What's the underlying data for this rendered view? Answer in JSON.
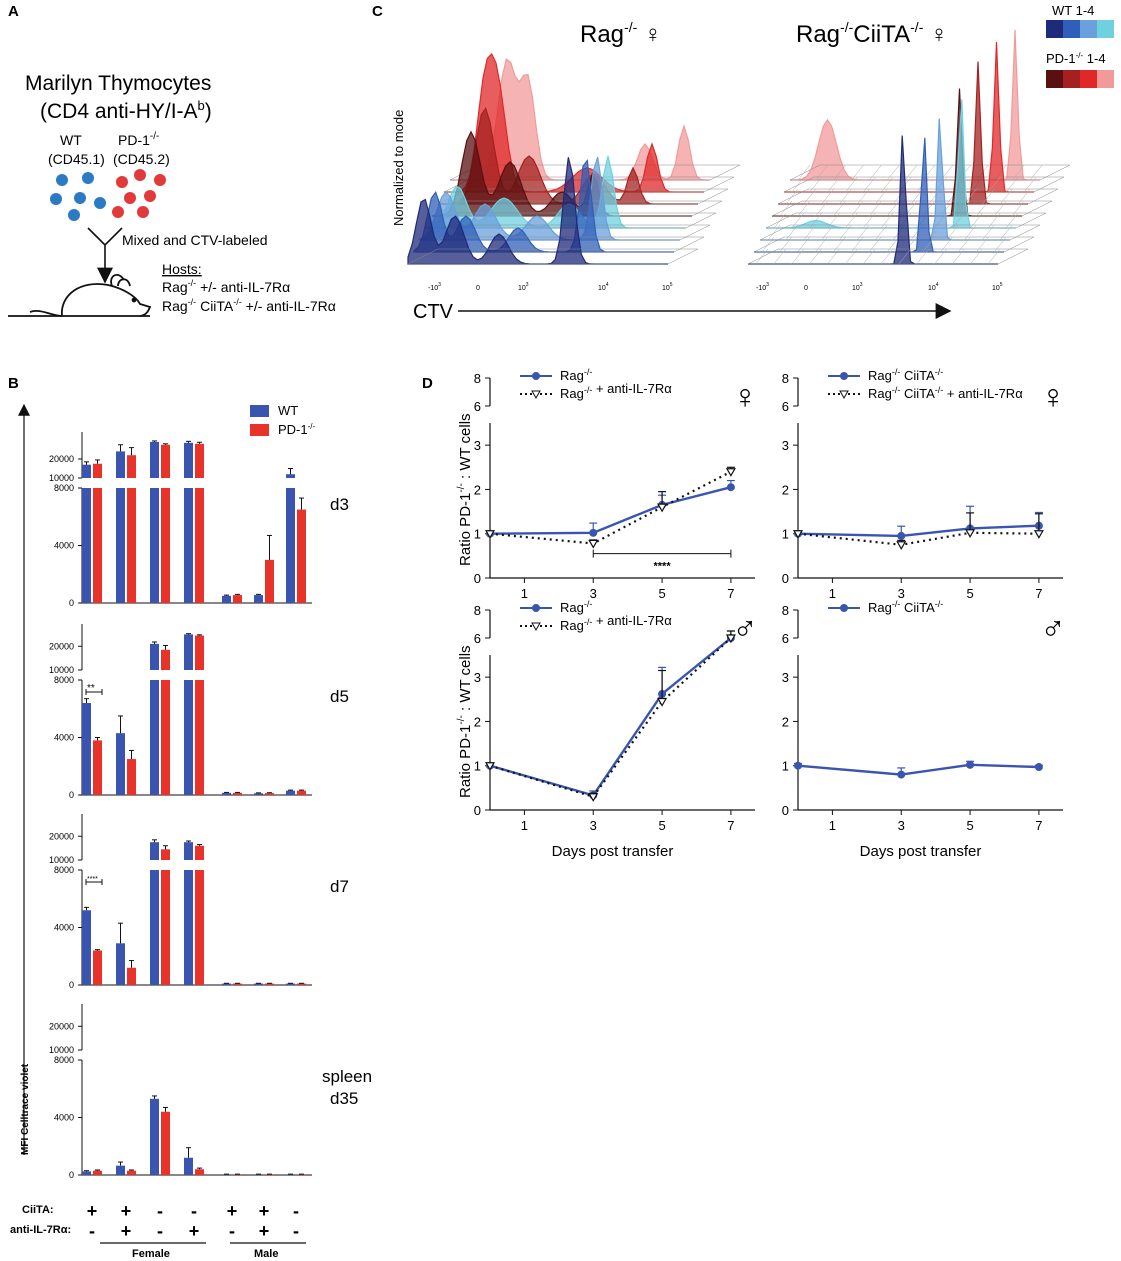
{
  "panelA": {
    "letter": "A",
    "title_line1": "Marilyn Thymocytes",
    "title_line2_pre": "(CD4 anti-HY/I-A",
    "title_line2_sup": "b",
    "title_line2_post": ")",
    "wt_label": "WT",
    "wt_marker": "(CD45.1)",
    "pd1_label": "PD-1",
    "pd1_sup": "-/-",
    "pd1_marker": "(CD45.2)",
    "mixed_label": "Mixed and CTV-labeled",
    "hosts_title": "Hosts:",
    "host1_pre": "Rag",
    "host1_sup": "-/-",
    "host1_post": " +/- anti-IL-7Rα",
    "host2_pre": "Rag",
    "host2_sup1": "-/-",
    "host2_mid": " CiiTA",
    "host2_sup2": "-/-",
    "host2_post": " +/- anti-IL-7Rα",
    "colors": {
      "wt": "#2a7bc4",
      "pd1": "#e23a3a"
    }
  },
  "panelC": {
    "letter": "C",
    "title_left_pre": "Rag",
    "title_left_sup": "-/-",
    "title_left_sym": " ♀",
    "title_right_pre": "Rag",
    "title_right_sup1": "-/-",
    "title_right_mid": "CiiTA",
    "title_right_sup2": "-/-",
    "title_right_sym": " ♀",
    "ylabel": "Normalized to mode",
    "xlabel": "CTV",
    "legend_wt": "WT 1-4",
    "legend_pd1_pre": "PD-1",
    "legend_pd1_sup": "-/-",
    "legend_pd1_post": " 1-4",
    "wt_colors": [
      "#1f2a7a",
      "#2f5fb8",
      "#6aa0dc",
      "#6fd0e0"
    ],
    "pd1_colors": [
      "#5a1010",
      "#a52020",
      "#e02828",
      "#f29a9a"
    ],
    "tick_labels": [
      "-10",
      "0",
      "10",
      "10",
      "10"
    ],
    "tick_sups": [
      "3",
      "",
      "3",
      "4",
      "5"
    ]
  },
  "panelB": {
    "letter": "B",
    "legend_wt": "WT",
    "legend_pd1_pre": "PD-1",
    "legend_pd1_sup": "-/-",
    "ylabel": "MFI Celltrace violet",
    "row_ciita_label": "CiiTA:",
    "row_il7_label": "anti-IL-7Rα:",
    "ciita_signs": [
      "+",
      "+",
      "-",
      "-",
      "+",
      "+",
      "-"
    ],
    "il7_signs": [
      "-",
      "+",
      "-",
      "+",
      "-",
      "+",
      "-"
    ],
    "group_female": "Female",
    "group_male": "Male",
    "upper_ticks": [
      "20000",
      "10000"
    ],
    "lower_ticks": [
      "8000",
      "4000",
      "0"
    ],
    "colors": {
      "wt": "#3a55b0",
      "pd1": "#e8332b"
    }
  },
  "chart_data": [
    {
      "type": "bar",
      "panel": "B-d3",
      "title": "d3",
      "categories": [
        "F CiiTA+ IL7R-",
        "F CiiTA+ IL7R+",
        "F CiiTA- IL7R-",
        "F CiiTA- IL7R+",
        "M CiiTA+ IL7R-",
        "M CiiTA+ IL7R+",
        "M CiiTA- IL7R-"
      ],
      "series": [
        {
          "name": "WT",
          "values": [
            17000,
            24000,
            29000,
            28500,
            500,
            550,
            12000
          ],
          "errors": [
            1500,
            3500,
            500,
            800,
            50,
            50,
            3000
          ]
        },
        {
          "name": "PD-1-/-",
          "values": [
            17500,
            22000,
            27500,
            28000,
            550,
            3000,
            6500
          ],
          "errors": [
            2000,
            4000,
            500,
            800,
            50,
            1700,
            800
          ]
        }
      ],
      "ylabel": "MFI Celltrace violet",
      "ylim_lower": [
        0,
        8000
      ],
      "ylim_upper": [
        10000,
        30000
      ],
      "annotation": ""
    },
    {
      "type": "bar",
      "panel": "B-d5",
      "title": "d5",
      "categories": [
        "F CiiTA+ IL7R-",
        "F CiiTA+ IL7R+",
        "F CiiTA- IL7R-",
        "F CiiTA- IL7R+",
        "M CiiTA+ IL7R-",
        "M CiiTA+ IL7R+",
        "M CiiTA- IL7R-"
      ],
      "series": [
        {
          "name": "WT",
          "values": [
            6400,
            4300,
            21000,
            25000,
            150,
            120,
            300
          ],
          "errors": [
            300,
            1200,
            800,
            300,
            30,
            30,
            40
          ]
        },
        {
          "name": "PD-1-/-",
          "values": [
            3800,
            2500,
            18500,
            24500,
            150,
            130,
            300
          ],
          "errors": [
            200,
            600,
            1800,
            300,
            30,
            30,
            40
          ]
        }
      ],
      "ylabel": "MFI Celltrace violet",
      "ylim_lower": [
        0,
        8000
      ],
      "ylim_upper": [
        10000,
        26000
      ],
      "annotation": "**"
    },
    {
      "type": "bar",
      "panel": "B-d7",
      "title": "d7",
      "categories": [
        "F CiiTA+ IL7R-",
        "F CiiTA+ IL7R+",
        "F CiiTA- IL7R-",
        "F CiiTA- IL7R+",
        "M CiiTA+ IL7R-",
        "M CiiTA+ IL7R+",
        "M CiiTA- IL7R-"
      ],
      "series": [
        {
          "name": "WT",
          "values": [
            5200,
            2900,
            17500,
            17500,
            100,
            100,
            100
          ],
          "errors": [
            200,
            1400,
            1000,
            500,
            20,
            20,
            20
          ]
        },
        {
          "name": "PD-1-/-",
          "values": [
            2400,
            1200,
            14500,
            16000,
            100,
            100,
            100
          ],
          "errors": [
            60,
            500,
            1500,
            500,
            20,
            20,
            20
          ]
        }
      ],
      "ylabel": "MFI Celltrace violet",
      "ylim_lower": [
        0,
        8000
      ],
      "ylim_upper": [
        10000,
        26000
      ],
      "annotation": "****"
    },
    {
      "type": "bar",
      "panel": "B-spleen",
      "title": "spleen",
      "subtitle": "d35",
      "categories": [
        "F CiiTA+ IL7R-",
        "F CiiTA+ IL7R+",
        "F CiiTA- IL7R-",
        "F CiiTA- IL7R+",
        "M CiiTA+ IL7R-",
        "M CiiTA+ IL7R+",
        "M CiiTA- IL7R-"
      ],
      "series": [
        {
          "name": "WT",
          "values": [
            250,
            650,
            5300,
            1200,
            50,
            50,
            50
          ],
          "errors": [
            50,
            250,
            200,
            700,
            10,
            10,
            10
          ]
        },
        {
          "name": "PD-1-/-",
          "values": [
            300,
            300,
            4400,
            400,
            50,
            50,
            50
          ],
          "errors": [
            50,
            50,
            300,
            80,
            10,
            10,
            10
          ]
        }
      ],
      "ylabel": "MFI Celltrace violet",
      "ylim_lower": [
        0,
        8000
      ],
      "ylim_upper": [
        10000,
        26000
      ],
      "annotation": ""
    },
    {
      "type": "line",
      "panel": "D-female-rag",
      "symbol": "♀",
      "x": [
        0,
        3,
        5,
        7
      ],
      "series": [
        {
          "name": "Rag-/-",
          "values": [
            1.0,
            1.02,
            1.65,
            2.05
          ],
          "errors": [
            0.05,
            0.22,
            0.22,
            0.15
          ]
        },
        {
          "name": "Rag-/- + anti-IL-7Rα",
          "values": [
            1.0,
            0.78,
            1.6,
            2.4
          ],
          "errors": [
            0.05,
            0.08,
            0.35,
            0.1
          ]
        }
      ],
      "legend": [
        "Rag",
        "Rag"
      ],
      "legend_sup": [
        "-/-",
        "-/-"
      ],
      "legend_post": [
        "",
        " + anti-IL-7Rα"
      ],
      "xlabel": "",
      "ylabel_pre": "Ratio PD-1",
      "ylabel_sup": "-/-",
      "ylabel_post": " : WT cells",
      "xticks": [
        "1",
        "3",
        "5",
        "7"
      ],
      "yticks": [
        "0",
        "1",
        "2",
        "3"
      ],
      "break_ticks": [
        "6",
        "8"
      ],
      "annotation": "****"
    },
    {
      "type": "line",
      "panel": "D-female-ciita",
      "symbol": "♀",
      "x": [
        0,
        3,
        5,
        7
      ],
      "series": [
        {
          "name": "Rag-/- CiiTA-/-",
          "values": [
            1.0,
            0.95,
            1.12,
            1.18
          ],
          "errors": [
            0.05,
            0.22,
            0.5,
            0.3
          ]
        },
        {
          "name": "Rag-/- CiiTA-/- + anti-IL-7Rα",
          "values": [
            1.0,
            0.75,
            1.02,
            1.0
          ],
          "errors": [
            0.05,
            0.1,
            0.45,
            0.45
          ]
        }
      ],
      "legend": [
        "Rag",
        "Rag"
      ],
      "legend_sup": [
        "-/-",
        "-/-"
      ],
      "legend_mid": [
        " CiiTA",
        " CiiTA"
      ],
      "legend_sup2": [
        "-/-",
        "-/-"
      ],
      "legend_post": [
        "",
        " + anti-IL-7Rα"
      ],
      "xlabel": "",
      "xticks": [
        "1",
        "3",
        "5",
        "7"
      ],
      "yticks": [
        "0",
        "1",
        "2",
        "3"
      ],
      "break_ticks": [
        "6",
        "8"
      ]
    },
    {
      "type": "line",
      "panel": "D-male-rag",
      "symbol": "♂",
      "x": [
        0,
        3,
        5,
        7
      ],
      "series": [
        {
          "name": "Rag-/-",
          "values": [
            1.0,
            0.33,
            2.62,
            6.0
          ],
          "errors": [
            0.05,
            0.1,
            0.6,
            0.5
          ]
        },
        {
          "name": "Rag-/- + anti-IL-7Rα",
          "values": [
            1.0,
            0.3,
            2.45,
            6.0
          ],
          "errors": [
            0.05,
            0.08,
            0.7,
            0.5
          ]
        }
      ],
      "legend": [
        "Rag",
        "Rag"
      ],
      "legend_sup": [
        "-/-",
        "-/-"
      ],
      "legend_post": [
        "",
        " + anti-IL-7Rα"
      ],
      "xlabel": "Days post transfer",
      "ylabel_pre": "Ratio PD-1",
      "ylabel_sup": "-/-",
      "ylabel_post": " : WT cells",
      "xticks": [
        "1",
        "3",
        "5",
        "7"
      ],
      "yticks": [
        "0",
        "1",
        "2",
        "3"
      ],
      "break_ticks": [
        "6",
        "8"
      ]
    },
    {
      "type": "line",
      "panel": "D-male-ciita",
      "symbol": "♂",
      "x": [
        0,
        3,
        5,
        7
      ],
      "series": [
        {
          "name": "Rag-/- CiiTA-/-",
          "values": [
            1.0,
            0.8,
            1.02,
            0.97
          ],
          "errors": [
            0.05,
            0.15,
            0.08,
            0.04
          ]
        }
      ],
      "legend": [
        "Rag"
      ],
      "legend_sup": [
        "-/-"
      ],
      "legend_mid": [
        " CiiTA"
      ],
      "legend_sup2": [
        "-/-"
      ],
      "legend_post": [
        ""
      ],
      "xlabel": "Days post transfer",
      "xticks": [
        "1",
        "3",
        "5",
        "7"
      ],
      "yticks": [
        "0",
        "1",
        "2",
        "3"
      ],
      "break_ticks": [
        "6",
        "8"
      ]
    }
  ],
  "panelD": {
    "letter": "D"
  }
}
